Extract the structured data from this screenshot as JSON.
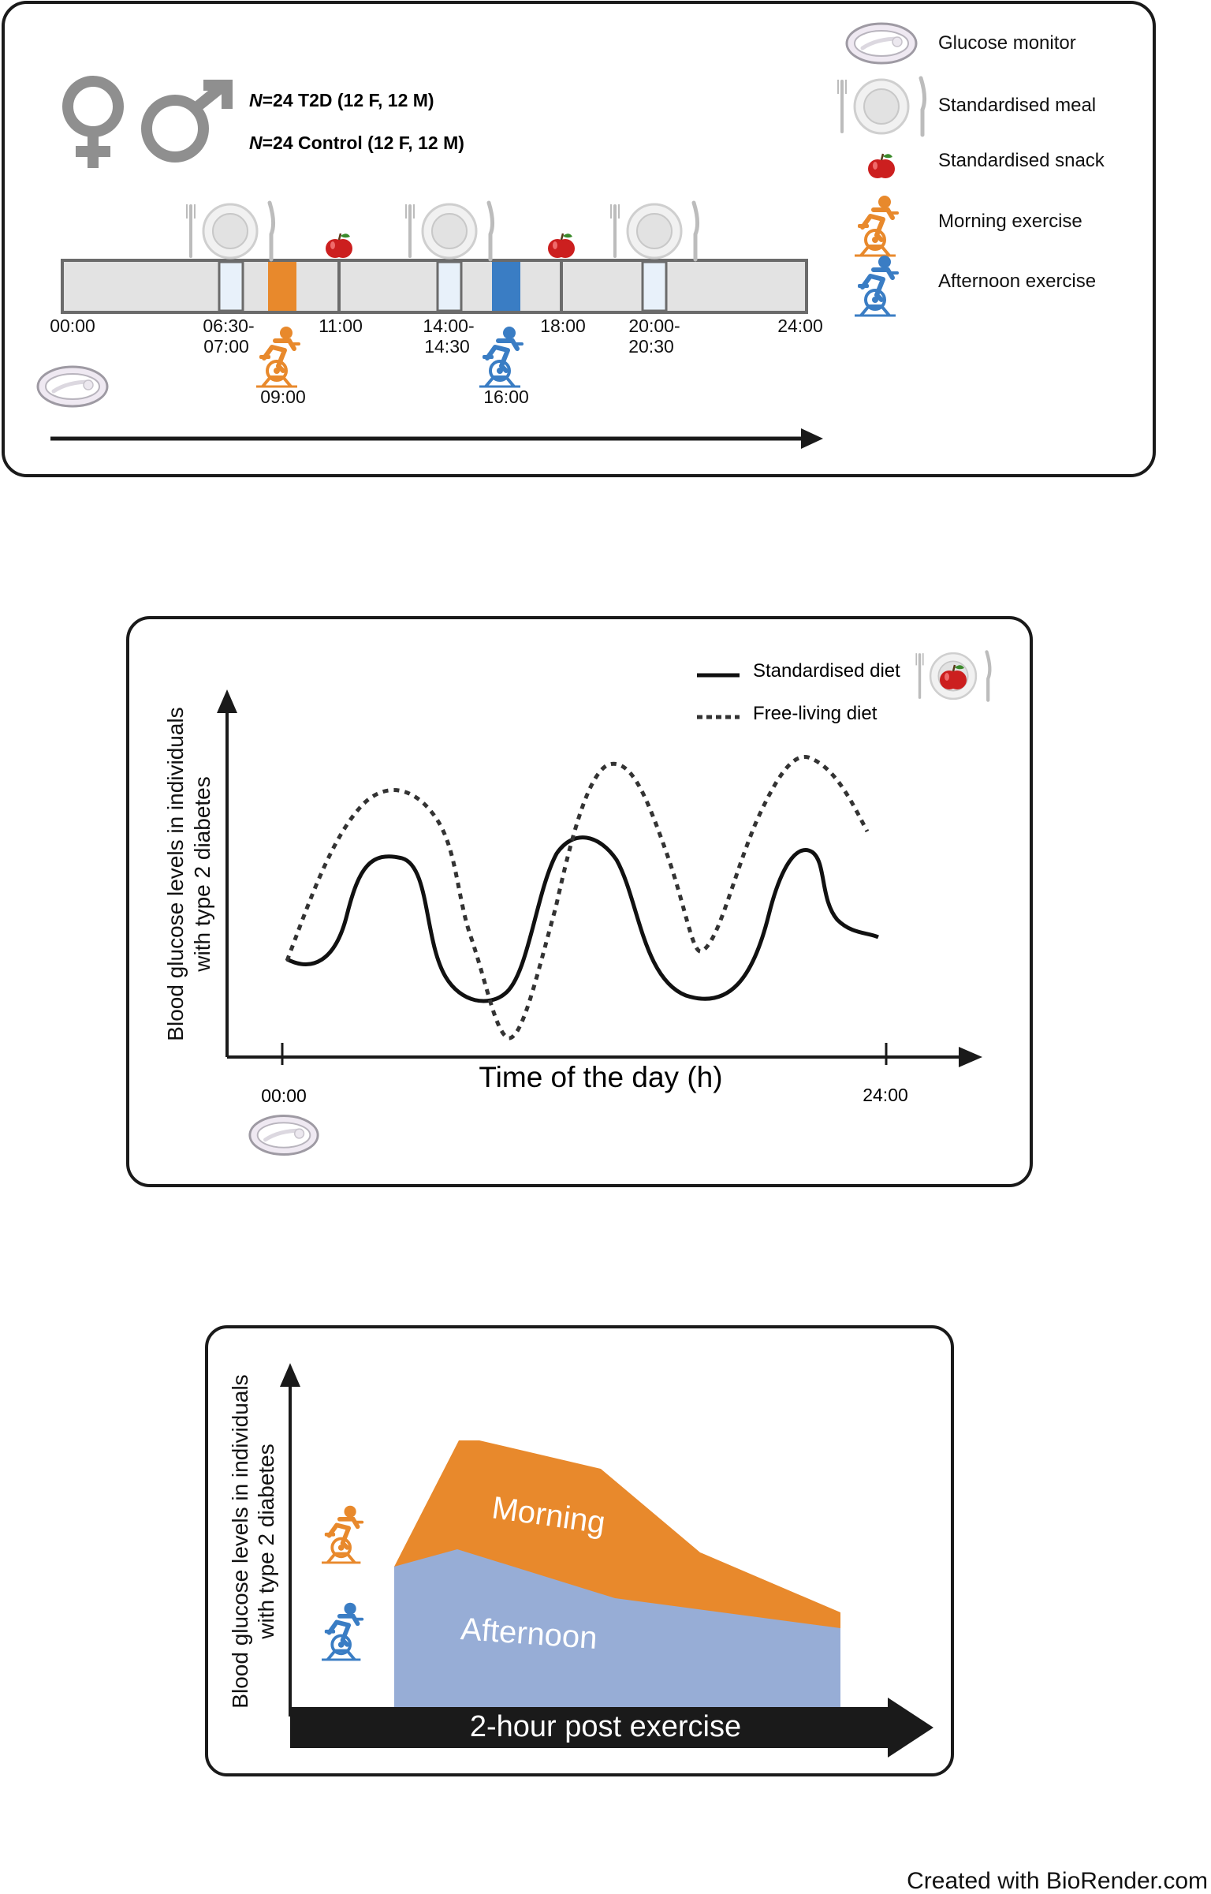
{
  "panel1": {
    "cohort": {
      "t2d_n": "N",
      "t2d_text": "=24 T2D (12 F, 12 M)",
      "control_n": "N",
      "control_text": "=24 Control (12 F, 12 M)"
    },
    "legend": [
      {
        "icon": "glucose-monitor-icon",
        "label": "Glucose monitor"
      },
      {
        "icon": "plate-icon",
        "label": "Standardised meal"
      },
      {
        "icon": "apple-icon",
        "label": "Standardised snack"
      },
      {
        "icon": "cyclist-icon",
        "label": "Morning exercise"
      },
      {
        "icon": "cyclist-icon",
        "label": "Afternoon exercise"
      }
    ],
    "timeline_labels": {
      "start": "00:00",
      "meal1_a": "06:30-",
      "meal1_b": "07:00",
      "snack1": "11:00",
      "meal2_a": "14:00-",
      "meal2_b": "14:30",
      "snack2": "18:00",
      "meal3_a": "20:00-",
      "meal3_b": "20:30",
      "end": "24:00",
      "morning_ex": "09:00",
      "afternoon_ex": "16:00"
    }
  },
  "panel2": {
    "ylabel_line1": "Blood glucose levels in individuals",
    "ylabel_line2": "with type 2 diabetes",
    "xlabel": "Time of the day (h)",
    "x_start": "00:00",
    "x_end": "24:00",
    "legend": [
      {
        "style": "solid",
        "label": "Standardised diet"
      },
      {
        "style": "dotted",
        "label": "Free-living diet"
      }
    ]
  },
  "panel3": {
    "ylabel_line1": "Blood glucose levels in individuals",
    "ylabel_line2": "with type 2 diabetes",
    "xlabel": "2-hour post exercise",
    "morning_label": "Morning",
    "afternoon_label": "Afternoon"
  },
  "colors": {
    "morning": "#E8892C",
    "afternoon": "#3A7DC4",
    "afternoon_area": "#97ADD6",
    "bar": "#E3E3E3",
    "meal_window": "#E8F1FA",
    "apple": "#CC1F1F"
  },
  "credit": "Created with BioRender.com"
}
